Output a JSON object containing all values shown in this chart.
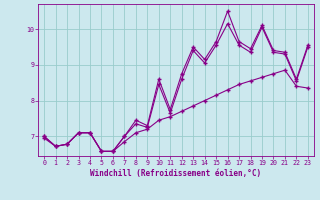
{
  "xlabel": "Windchill (Refroidissement éolien,°C)",
  "bg_color": "#cce8ee",
  "line_color": "#880088",
  "grid_color": "#99cccc",
  "xlim": [
    -0.5,
    23.5
  ],
  "ylim": [
    6.45,
    10.7
  ],
  "yticks": [
    7,
    8,
    9,
    10
  ],
  "xticks": [
    0,
    1,
    2,
    3,
    4,
    5,
    6,
    7,
    8,
    9,
    10,
    11,
    12,
    13,
    14,
    15,
    16,
    17,
    18,
    19,
    20,
    21,
    22,
    23
  ],
  "series": [
    {
      "x": [
        0,
        1,
        2,
        3,
        4,
        5,
        6,
        7,
        8,
        9,
        10,
        11,
        12,
        13,
        14,
        15,
        16,
        17,
        18,
        19,
        20,
        21,
        22,
        23
      ],
      "y": [
        6.95,
        6.72,
        6.78,
        7.1,
        7.1,
        6.58,
        6.58,
        6.85,
        7.1,
        7.2,
        7.45,
        7.55,
        7.7,
        7.85,
        8.0,
        8.15,
        8.3,
        8.45,
        8.55,
        8.65,
        8.75,
        8.85,
        8.4,
        8.35
      ]
    },
    {
      "x": [
        0,
        1,
        2,
        3,
        4,
        5,
        6,
        7,
        8,
        9,
        10,
        11,
        12,
        13,
        14,
        15,
        16,
        17,
        18,
        19,
        20,
        21,
        22,
        23
      ],
      "y": [
        7.0,
        6.72,
        6.78,
        7.1,
        7.1,
        6.58,
        6.58,
        7.0,
        7.35,
        7.25,
        8.45,
        7.65,
        8.6,
        9.4,
        9.05,
        9.55,
        10.15,
        9.55,
        9.35,
        10.05,
        9.35,
        9.3,
        8.55,
        9.5
      ]
    },
    {
      "x": [
        0,
        1,
        2,
        3,
        4,
        5,
        6,
        7,
        8,
        9,
        10,
        11,
        12,
        13,
        14,
        15,
        16,
        17,
        18,
        19,
        20,
        21,
        22,
        23
      ],
      "y": [
        7.0,
        6.72,
        6.78,
        7.1,
        7.1,
        6.58,
        6.58,
        7.0,
        7.45,
        7.3,
        8.6,
        7.75,
        8.75,
        9.5,
        9.15,
        9.65,
        10.5,
        9.65,
        9.45,
        10.1,
        9.4,
        9.35,
        8.6,
        9.55
      ]
    }
  ]
}
